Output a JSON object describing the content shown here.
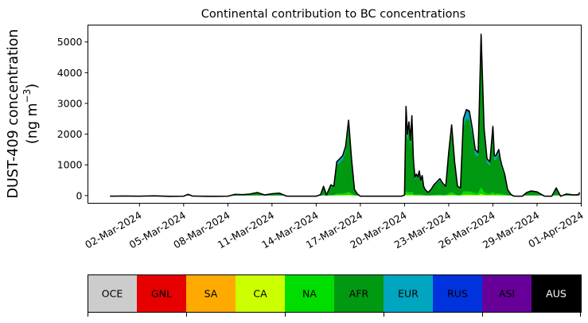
{
  "chart_data": {
    "type": "area",
    "title": "Continental contribution to BC concentrations",
    "ylabel_line1": "DUST-409 concentration",
    "ylabel_line2_prefix": "(ng m",
    "ylabel_line2_sup": "−3",
    "ylabel_line2_suffix": ")",
    "xlabel": "",
    "x_start": "2024-02-29",
    "x_end": "2024-03-31",
    "xlim_days": [
      -1.5,
      32.0
    ],
    "ylim": [
      -250,
      5550
    ],
    "yticks": [
      0,
      1000,
      2000,
      3000,
      4000,
      5000
    ],
    "xtick_days": [
      2,
      5,
      8,
      11,
      14,
      17,
      20,
      23,
      26,
      29,
      32
    ],
    "xtick_labels": [
      "02-Mar-2024",
      "05-Mar-2024",
      "08-Mar-2024",
      "11-Mar-2024",
      "14-Mar-2024",
      "17-Mar-2024",
      "20-Mar-2024",
      "23-Mar-2024",
      "26-Mar-2024",
      "29-Mar-2024",
      "01-Apr-2024"
    ],
    "total_series": {
      "day": [
        0.0,
        1.0,
        2.0,
        3.0,
        4.0,
        5.0,
        5.3,
        5.6,
        6.0,
        7.0,
        8.0,
        8.5,
        9.0,
        9.5,
        10.0,
        10.5,
        11.0,
        11.5,
        12.0,
        13.0,
        14.0,
        14.3,
        14.5,
        14.7,
        15.0,
        15.2,
        15.4,
        15.6,
        15.8,
        16.0,
        16.2,
        16.4,
        16.6,
        16.8,
        17.0,
        18.0,
        19.0,
        19.5,
        19.8,
        20.0,
        20.1,
        20.2,
        20.3,
        20.4,
        20.5,
        20.6,
        20.7,
        20.8,
        20.9,
        21.0,
        21.1,
        21.2,
        21.3,
        21.4,
        21.6,
        21.8,
        22.0,
        22.2,
        22.4,
        22.6,
        22.8,
        23.0,
        23.2,
        23.4,
        23.6,
        23.8,
        24.0,
        24.2,
        24.4,
        24.6,
        24.8,
        25.0,
        25.2,
        25.4,
        25.6,
        25.8,
        26.0,
        26.1,
        26.2,
        26.3,
        26.4,
        26.5,
        26.6,
        26.8,
        27.0,
        27.2,
        27.4,
        27.6,
        27.8,
        28.0,
        28.3,
        28.6,
        29.0,
        29.5,
        30.0,
        30.3,
        30.6,
        31.0,
        31.5,
        31.8,
        31.9
      ],
      "total": [
        -20,
        -15,
        -20,
        -10,
        -25,
        -20,
        40,
        -15,
        -20,
        -25,
        -20,
        40,
        30,
        50,
        100,
        20,
        60,
        80,
        -20,
        -20,
        -20,
        30,
        300,
        20,
        350,
        300,
        1100,
        1200,
        1300,
        1600,
        2450,
        1200,
        200,
        50,
        -20,
        -20,
        -20,
        -20,
        -20,
        20,
        2900,
        2000,
        2400,
        1800,
        2600,
        1200,
        600,
        700,
        600,
        800,
        500,
        650,
        300,
        200,
        100,
        200,
        350,
        450,
        550,
        400,
        300,
        1400,
        2300,
        1100,
        300,
        250,
        2500,
        2800,
        2750,
        2200,
        1500,
        1400,
        5250,
        2200,
        1200,
        1100,
        2250,
        1300,
        1300,
        1400,
        1500,
        1200,
        1000,
        700,
        200,
        50,
        -15,
        -20,
        -20,
        -20,
        100,
        150,
        120,
        -20,
        -20,
        250,
        -20,
        50,
        20,
        30,
        100
      ]
    },
    "stacked_layers": [
      {
        "name": "OCE",
        "color": "#cccccc",
        "share": 0.0
      },
      {
        "name": "GNL",
        "color": "#e60000",
        "share": 0.0
      },
      {
        "name": "SA",
        "color": "#ffaa00",
        "share": 0.0
      },
      {
        "name": "CA",
        "color": "#ccff00",
        "share": 0.01
      },
      {
        "name": "NA",
        "color": "#00dd00",
        "share": 0.04
      },
      {
        "name": "AFR",
        "color": "#009911",
        "share": 0.85
      },
      {
        "name": "EUR",
        "color": "#00a5bf",
        "share": 0.08
      },
      {
        "name": "RUS",
        "color": "#0033dd",
        "share": 0.01
      },
      {
        "name": "ASI",
        "color": "#660099",
        "share": 0.01
      },
      {
        "name": "AUS",
        "color": "#000000",
        "share": 0.0
      }
    ],
    "legend": [
      {
        "name": "OCE",
        "color": "#cccccc",
        "text_color": "#000000"
      },
      {
        "name": "GNL",
        "color": "#e60000",
        "text_color": "#000000"
      },
      {
        "name": "SA",
        "color": "#ffaa00",
        "text_color": "#000000"
      },
      {
        "name": "CA",
        "color": "#ccff00",
        "text_color": "#000000"
      },
      {
        "name": "NA",
        "color": "#00dd00",
        "text_color": "#000000"
      },
      {
        "name": "AFR",
        "color": "#009911",
        "text_color": "#000000"
      },
      {
        "name": "EUR",
        "color": "#00a5bf",
        "text_color": "#000000"
      },
      {
        "name": "RUS",
        "color": "#0033dd",
        "text_color": "#000000"
      },
      {
        "name": "ASI",
        "color": "#660099",
        "text_color": "#000000"
      },
      {
        "name": "AUS",
        "color": "#000000",
        "text_color": "#ffffff"
      }
    ]
  }
}
